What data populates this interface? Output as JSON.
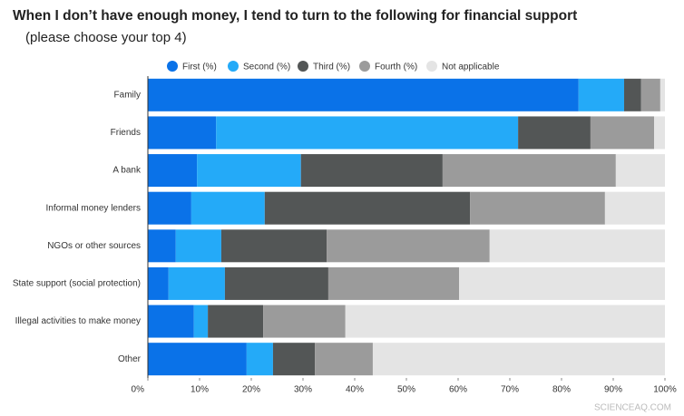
{
  "chart_data": {
    "type": "stacked-bar-horizontal",
    "title": "When I don’t have enough money, I tend to turn to the following for financial support",
    "subtitle": "(please choose your top 4)",
    "categories": [
      "Family",
      "Friends",
      "A bank",
      "Informal money lenders",
      "NGOs or other sources",
      "State support (social protection)",
      "Illegal activities to make money",
      "Other"
    ],
    "series": [
      {
        "name": "First (%)",
        "color": "#0a72e8",
        "values": [
          83.3,
          13.2,
          9.5,
          8.4,
          5.4,
          4.0,
          8.9,
          19.1
        ]
      },
      {
        "name": "Second (%)",
        "color": "#24aaf8",
        "values": [
          8.8,
          58.4,
          20.1,
          14.2,
          8.8,
          10.9,
          2.7,
          5.1
        ]
      },
      {
        "name": "Third (%)",
        "color": "#535656",
        "values": [
          3.3,
          14.0,
          27.4,
          39.7,
          20.4,
          20.0,
          10.7,
          8.1
        ]
      },
      {
        "name": "Fourth (%)",
        "color": "#9b9b9b",
        "values": [
          3.7,
          12.3,
          33.5,
          26.1,
          31.5,
          25.3,
          15.9,
          11.2
        ]
      },
      {
        "name": "Not applicable",
        "color": "#e4e4e4",
        "values": [
          0.9,
          2.1,
          9.5,
          11.6,
          33.9,
          39.8,
          61.8,
          56.5
        ]
      }
    ],
    "xlim": [
      0,
      100
    ],
    "xticks": [
      {
        "value": 0,
        "label": "0%"
      },
      {
        "value": 10,
        "label": "10%"
      },
      {
        "value": 20,
        "label": "20%"
      },
      {
        "value": 30,
        "label": "30%"
      },
      {
        "value": 40,
        "label": "40%"
      },
      {
        "value": 50,
        "label": "50%"
      },
      {
        "value": 60,
        "label": "60%"
      },
      {
        "value": 70,
        "label": "70%"
      },
      {
        "value": 80,
        "label": "80%"
      },
      {
        "value": 90,
        "label": "90%"
      },
      {
        "value": 100,
        "label": "100%"
      }
    ],
    "watermark": "SCIENCEAQ.COM"
  }
}
